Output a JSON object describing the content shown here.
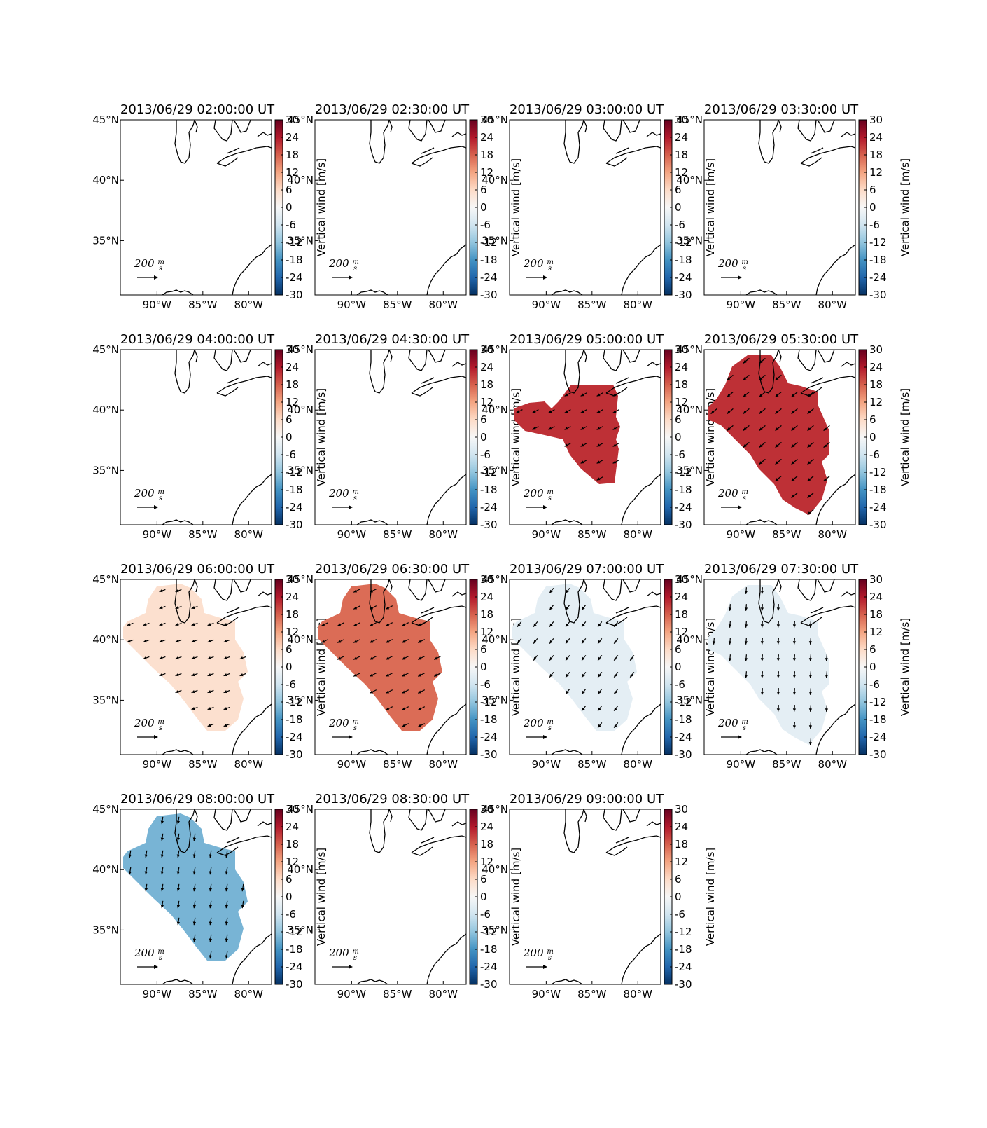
{
  "figure": {
    "colorbar_label": "Vertical wind [m/s]",
    "colorbar_ticks": [
      30,
      24,
      18,
      12,
      6,
      0,
      -6,
      -12,
      -18,
      -24,
      -30
    ],
    "colorbar_range": [
      -30,
      30
    ],
    "lat_ticks": [
      "45°N",
      "40°N",
      "35°N"
    ],
    "lon_ticks": [
      "90°W",
      "85°W",
      "80°W"
    ],
    "scale_label_value": "200",
    "scale_label_num": "m",
    "scale_label_den": "s",
    "colors": {
      "coast": "#000000",
      "arrow": "#000000"
    }
  },
  "chart_data": [
    {
      "type": "heatmap",
      "title": "2013/06/29 02:00:00 UT",
      "vertical_wind": null,
      "region": null,
      "wind": null
    },
    {
      "type": "heatmap",
      "title": "2013/06/29 02:30:00 UT",
      "vertical_wind": null,
      "region": null,
      "wind": null
    },
    {
      "type": "heatmap",
      "title": "2013/06/29 03:00:00 UT",
      "vertical_wind": null,
      "region": null,
      "wind": null
    },
    {
      "type": "heatmap",
      "title": "2013/06/29 03:30:00 UT",
      "vertical_wind": null,
      "region": null,
      "wind": null
    },
    {
      "type": "heatmap",
      "title": "2013/06/29 04:00:00 UT",
      "vertical_wind": null,
      "region": null,
      "wind": null
    },
    {
      "type": "heatmap",
      "title": "2013/06/29 04:30:00 UT",
      "vertical_wind": null,
      "region": null,
      "wind": null
    },
    {
      "type": "heatmap",
      "title": "2013/06/29 05:00:00 UT",
      "vertical_wind": 22,
      "region": "A",
      "wind": [
        -55,
        -30
      ]
    },
    {
      "type": "heatmap",
      "title": "2013/06/29 05:30:00 UT",
      "vertical_wind": 22,
      "region": "B",
      "wind": [
        -55,
        -45
      ]
    },
    {
      "type": "heatmap",
      "title": "2013/06/29 06:00:00 UT",
      "vertical_wind": 5,
      "region": "C",
      "wind": [
        -55,
        -20
      ]
    },
    {
      "type": "heatmap",
      "title": "2013/06/29 06:30:00 UT",
      "vertical_wind": 17,
      "region": "C",
      "wind": [
        -60,
        -30
      ]
    },
    {
      "type": "heatmap",
      "title": "2013/06/29 07:00:00 UT",
      "vertical_wind": -3,
      "region": "C",
      "wind": [
        -35,
        -45
      ]
    },
    {
      "type": "heatmap",
      "title": "2013/06/29 07:30:00 UT",
      "vertical_wind": -3,
      "region": "B",
      "wind": [
        -5,
        -60
      ]
    },
    {
      "type": "heatmap",
      "title": "2013/06/29 08:00:00 UT",
      "vertical_wind": -14,
      "region": "C",
      "wind": [
        -10,
        -65
      ]
    },
    {
      "type": "heatmap",
      "title": "2013/06/29 08:30:00 UT",
      "vertical_wind": null,
      "region": null,
      "wind": null
    },
    {
      "type": "heatmap",
      "title": "2013/06/29 09:00:00 UT",
      "vertical_wind": null,
      "region": null,
      "wind": null
    }
  ]
}
